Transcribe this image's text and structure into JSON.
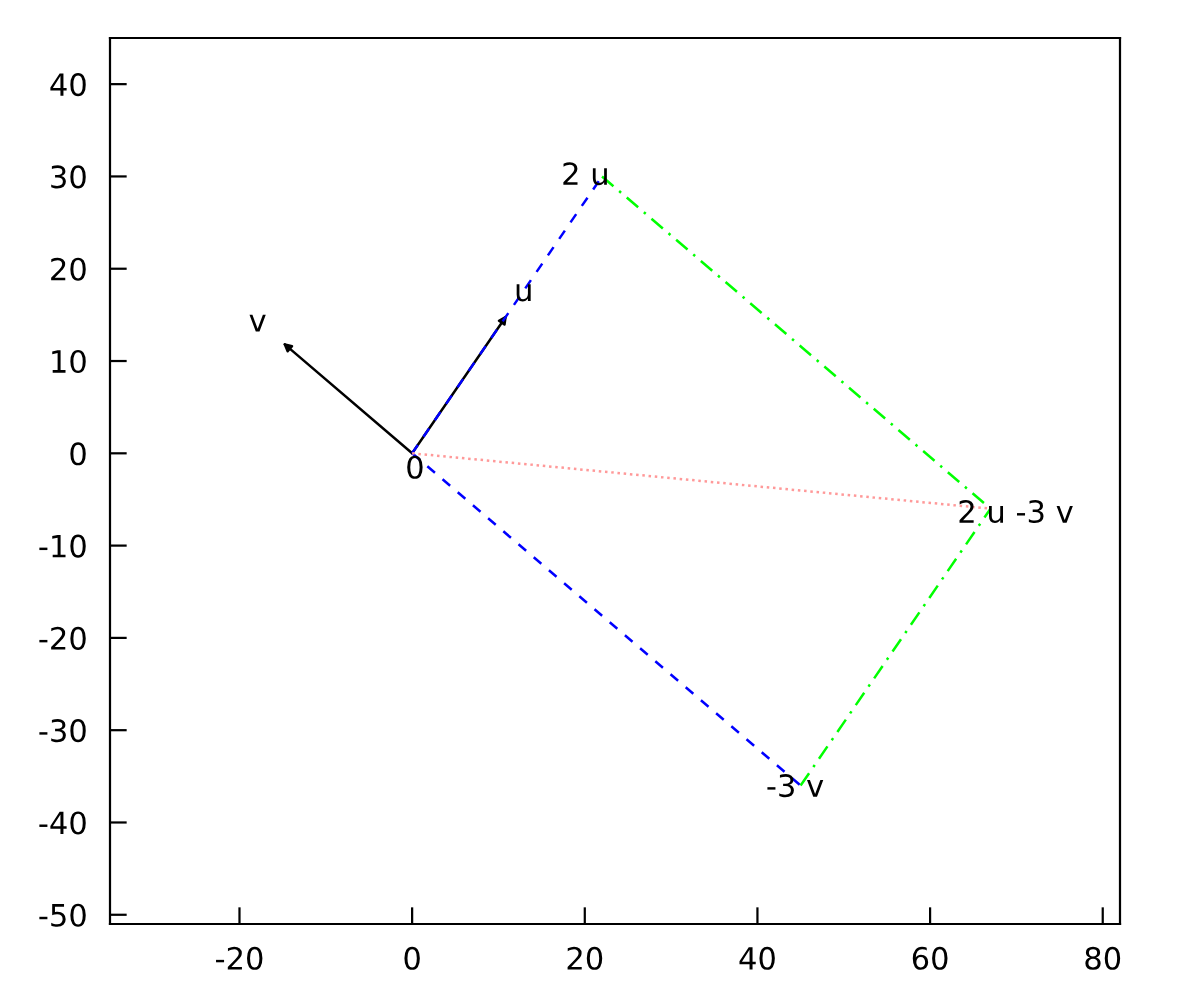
{
  "chart_data": {
    "type": "line",
    "xlim": [
      -35,
      82
    ],
    "ylim": [
      -51,
      45
    ],
    "xticks": [
      -20,
      0,
      20,
      40,
      60,
      80
    ],
    "yticks": [
      -50,
      -40,
      -30,
      -20,
      -10,
      0,
      10,
      20,
      30,
      40
    ],
    "grid": false,
    "legend": false,
    "marker": "none",
    "series": [
      {
        "x": [
          0,
          -15
        ],
        "values": [
          0,
          12
        ],
        "color": "#000000",
        "line_style": "solid"
      },
      {
        "x": [
          0,
          11
        ],
        "values": [
          0,
          15
        ],
        "color": "#000000",
        "line_style": "solid"
      },
      {
        "x": [
          0,
          22
        ],
        "values": [
          0,
          30
        ],
        "color": "#0000ff",
        "line_style": "dashed"
      },
      {
        "x": [
          0,
          45
        ],
        "values": [
          0,
          -36
        ],
        "color": "#0000ff",
        "line_style": "dashed"
      },
      {
        "x": [
          22,
          67
        ],
        "values": [
          30,
          -6
        ],
        "color": "#00ff00",
        "line_style": "dashdot"
      },
      {
        "x": [
          45,
          67
        ],
        "values": [
          -36,
          -6
        ],
        "color": "#00ff00",
        "line_style": "dashdot"
      },
      {
        "x": [
          0,
          67
        ],
        "values": [
          0,
          -6
        ],
        "color": "#ff9999",
        "line_style": "dotted"
      }
    ],
    "annotations": [
      {
        "text": "v",
        "x": -15,
        "y": 12
      },
      {
        "text": "u",
        "x": 11,
        "y": 15
      },
      {
        "text": "0",
        "x": 0,
        "y": 0
      },
      {
        "text": "2 u",
        "x": 22,
        "y": 30
      },
      {
        "text": "-3 v",
        "x": 45,
        "y": -36
      },
      {
        "text": "2 u -3 v",
        "x": 67,
        "y": -6
      }
    ]
  }
}
